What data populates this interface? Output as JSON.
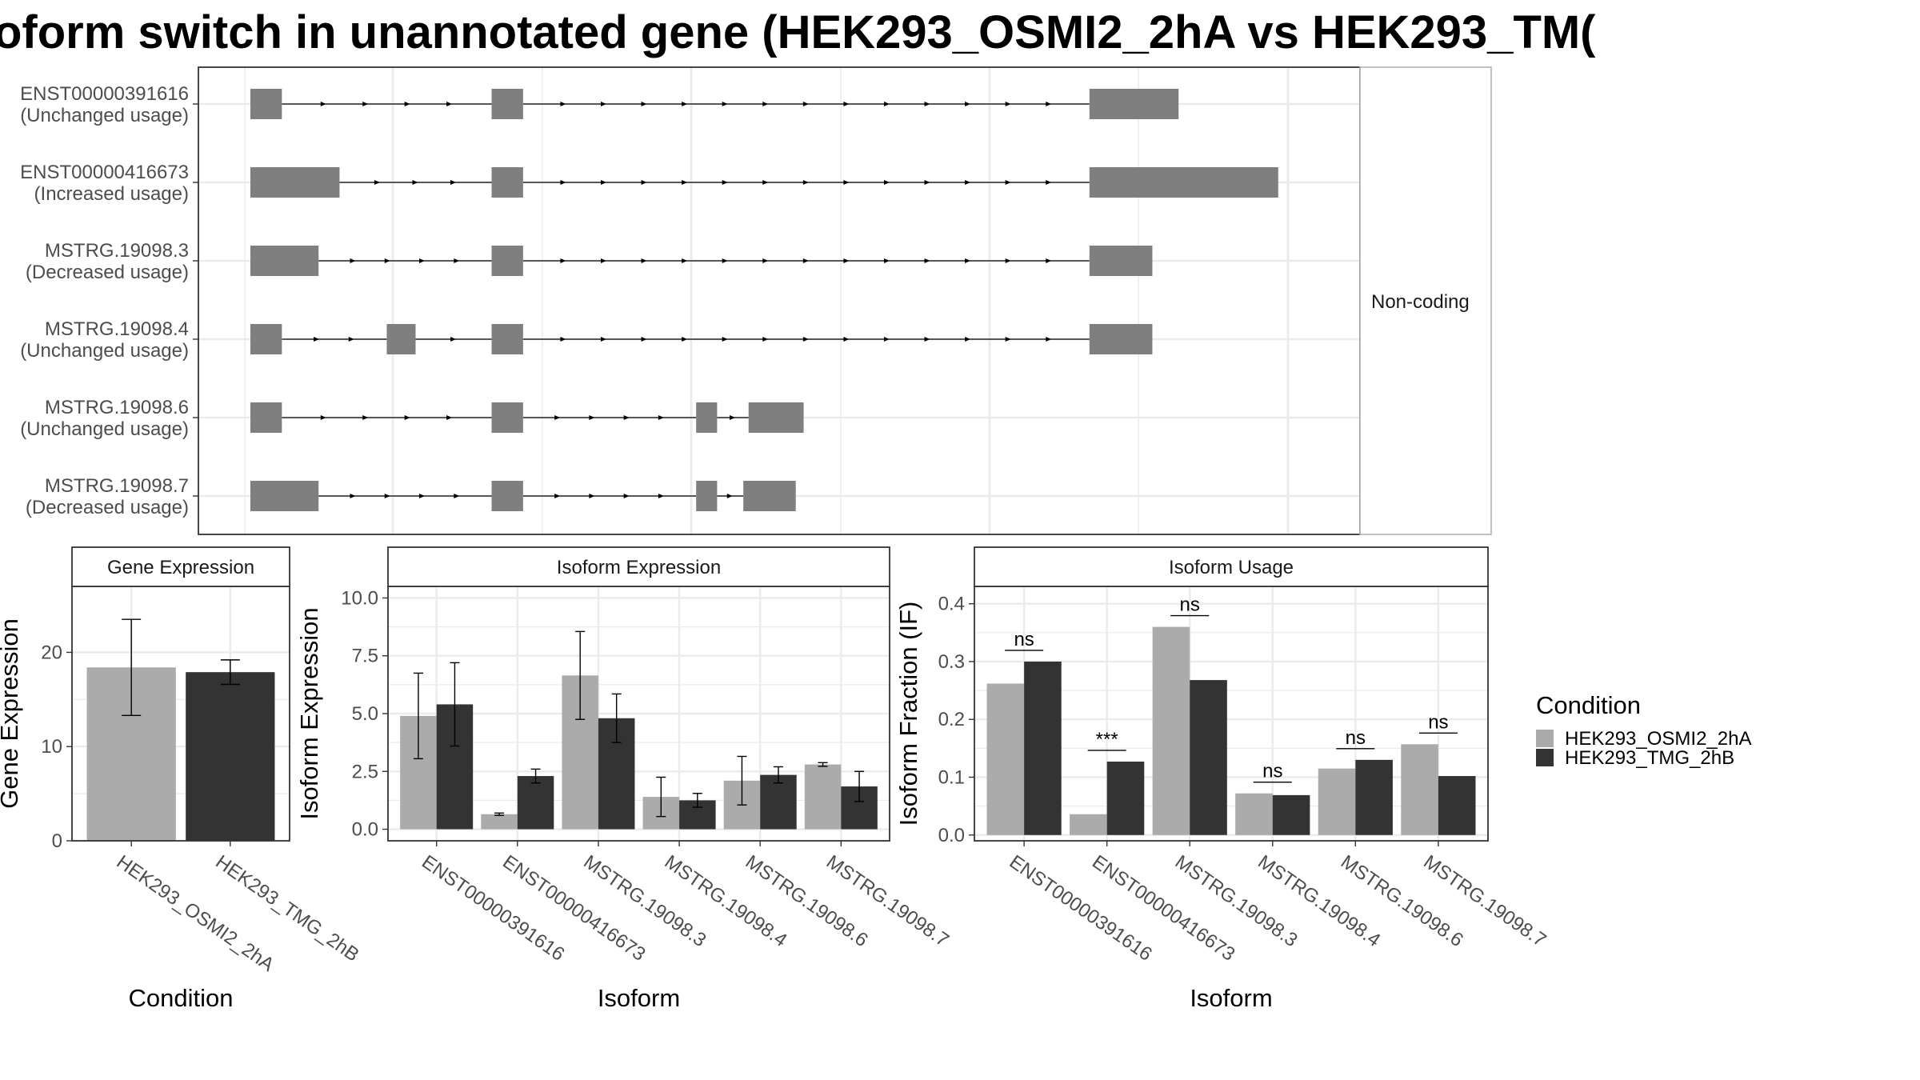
{
  "title": "oform switch in unannotated gene (HEK293_OSMI2_2hA vs HEK293_TM(",
  "colors": {
    "exon": "#7f7f7f",
    "cond1": "#ababab",
    "cond2": "#333333",
    "grid": "#ebebeb",
    "panel_border": "#333333",
    "strip_bg": "#ffffff"
  },
  "transcript_panel": {
    "strip_label": "Non-coding",
    "transcripts": [
      {
        "id": "ENST00000391616",
        "usage": "(Unchanged usage)",
        "exons": [
          [
            0,
            6
          ],
          [
            46,
            52
          ],
          [
            160,
            177
          ]
        ]
      },
      {
        "id": "ENST00000416673",
        "usage": "(Increased usage)",
        "exons": [
          [
            0,
            17
          ],
          [
            46,
            52
          ],
          [
            160,
            196
          ]
        ]
      },
      {
        "id": "MSTRG.19098.3",
        "usage": "(Decreased usage)",
        "exons": [
          [
            0,
            13
          ],
          [
            46,
            52
          ],
          [
            160,
            172
          ]
        ]
      },
      {
        "id": "MSTRG.19098.4",
        "usage": "(Unchanged usage)",
        "exons": [
          [
            0,
            6
          ],
          [
            26,
            31.5
          ],
          [
            46,
            52
          ],
          [
            160,
            172
          ]
        ]
      },
      {
        "id": "MSTRG.19098.6",
        "usage": "(Unchanged usage)",
        "exons": [
          [
            0,
            6
          ],
          [
            46,
            52
          ],
          [
            85,
            89
          ],
          [
            95,
            105.5
          ]
        ]
      },
      {
        "id": "MSTRG.19098.7",
        "usage": "(Decreased usage)",
        "exons": [
          [
            0,
            13
          ],
          [
            46,
            52
          ],
          [
            85,
            89
          ],
          [
            94,
            104
          ]
        ]
      }
    ]
  },
  "legend": {
    "title": "Condition",
    "items": [
      "HEK293_OSMI2_2hA",
      "HEK293_TMG_2hB"
    ]
  },
  "chart_data": [
    {
      "type": "bar",
      "title": "Gene Expression",
      "xlabel": "Condition",
      "ylabel": "Gene Expression",
      "categories": [
        "HEK293_OSMI2_2hA",
        "HEK293_TMG_2hB"
      ],
      "series": [
        {
          "name": "HEK293_OSMI2_2hA",
          "values": [
            18.4,
            null
          ],
          "err_low": [
            13.3,
            null
          ],
          "err_high": [
            23.5,
            null
          ]
        },
        {
          "name": "HEK293_TMG_2hB",
          "values": [
            null,
            17.9
          ],
          "err_low": [
            null,
            16.6
          ],
          "err_high": [
            null,
            19.2
          ]
        }
      ],
      "ylim": [
        0,
        27
      ],
      "yticks": [
        0,
        10,
        20
      ]
    },
    {
      "type": "bar",
      "title": "Isoform Expression",
      "xlabel": "Isoform",
      "ylabel": "Isoform Expression",
      "categories": [
        "ENST00000391616",
        "ENST00000416673",
        "MSTRG.19098.3",
        "MSTRG.19098.4",
        "MSTRG.19098.6",
        "MSTRG.19098.7"
      ],
      "series": [
        {
          "name": "HEK293_OSMI2_2hA",
          "values": [
            4.9,
            0.65,
            6.65,
            1.4,
            2.1,
            2.8
          ],
          "err_low": [
            3.05,
            0.6,
            4.75,
            0.55,
            1.05,
            2.72
          ],
          "err_high": [
            6.75,
            0.7,
            8.55,
            2.25,
            3.15,
            2.88
          ]
        },
        {
          "name": "HEK293_TMG_2hB",
          "values": [
            5.4,
            2.3,
            4.8,
            1.25,
            2.35,
            1.85
          ],
          "err_low": [
            3.6,
            2.0,
            3.75,
            0.95,
            2.0,
            1.2
          ],
          "err_high": [
            7.2,
            2.6,
            5.85,
            1.55,
            2.7,
            2.5
          ]
        }
      ],
      "ylim": [
        -0.5,
        10.5
      ],
      "yticks": [
        "0.0",
        "2.5",
        "5.0",
        "7.5",
        "10.0"
      ]
    },
    {
      "type": "bar",
      "title": "Isoform Usage",
      "xlabel": "Isoform",
      "ylabel": "Isoform Fraction (IF)",
      "categories": [
        "ENST00000391616",
        "ENST00000416673",
        "MSTRG.19098.3",
        "MSTRG.19098.4",
        "MSTRG.19098.6",
        "MSTRG.19098.7"
      ],
      "series": [
        {
          "name": "HEK293_OSMI2_2hA",
          "values": [
            0.262,
            0.036,
            0.36,
            0.072,
            0.115,
            0.157
          ]
        },
        {
          "name": "HEK293_TMG_2hB",
          "values": [
            0.3,
            0.127,
            0.268,
            0.069,
            0.13,
            0.102
          ]
        }
      ],
      "significance": [
        "ns",
        "***",
        "ns",
        "ns",
        "ns",
        "ns"
      ],
      "ylim": [
        -0.01,
        0.43
      ],
      "yticks": [
        "0.0",
        "0.1",
        "0.2",
        "0.3",
        "0.4"
      ]
    }
  ]
}
